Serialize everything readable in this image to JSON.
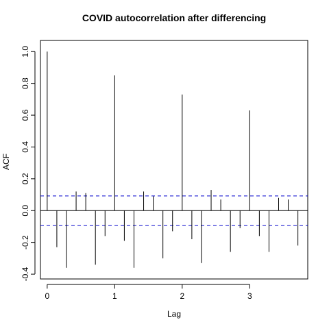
{
  "chart_data": {
    "type": "bar",
    "title": "COVID autocorrelation after differencing",
    "xlabel": "Lag",
    "ylabel": "ACF",
    "xlim": [
      -0.1,
      3.86
    ],
    "ylim": [
      -0.43,
      1.07
    ],
    "x_ticks": [
      0,
      1,
      2,
      3
    ],
    "y_ticks": [
      -0.4,
      -0.2,
      0.0,
      0.2,
      0.4,
      0.6,
      0.8,
      1.0
    ],
    "x_tick_labels": [
      "0",
      "1",
      "2",
      "3"
    ],
    "y_tick_labels": [
      "-0.4",
      "-0.2",
      "0.0",
      "0.2",
      "0.4",
      "0.6",
      "0.8",
      "1.0"
    ],
    "confidence_band": 0.092,
    "band_color": "#0000cc",
    "series": [
      {
        "x": [
          0.0,
          0.1429,
          0.2857,
          0.4286,
          0.5714,
          0.7143,
          0.8571,
          1.0,
          1.1429,
          1.2857,
          1.4286,
          1.5714,
          1.7143,
          1.8571,
          2.0,
          2.1429,
          2.2857,
          2.4286,
          2.5714,
          2.7143,
          2.8571,
          3.0,
          3.1429,
          3.2857,
          3.4286,
          3.5714,
          3.7143
        ],
        "values": [
          1.0,
          -0.23,
          -0.36,
          0.12,
          0.11,
          -0.34,
          -0.16,
          0.85,
          -0.19,
          -0.36,
          0.12,
          0.09,
          -0.3,
          -0.13,
          0.73,
          -0.18,
          -0.33,
          0.13,
          0.07,
          -0.26,
          -0.11,
          0.63,
          -0.16,
          -0.26,
          0.08,
          0.07,
          -0.22
        ]
      }
    ]
  }
}
